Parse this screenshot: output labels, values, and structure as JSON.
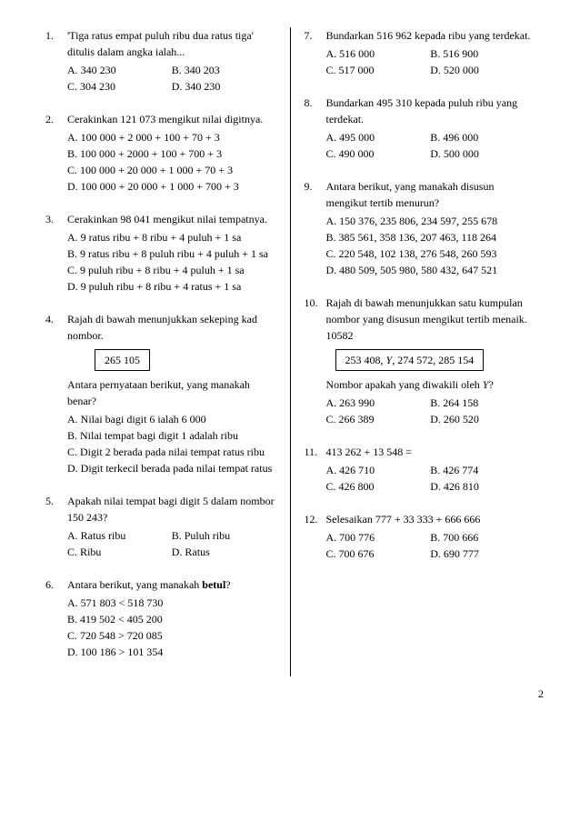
{
  "page_number": "2",
  "left": [
    {
      "num": "1.",
      "text": "'Tiga ratus empat puluh ribu dua ratus tiga' ditulis dalam angka ialah...",
      "layout": "2col",
      "options": [
        "A. 340 230",
        "B. 340 203",
        "C. 304 230",
        "D. 340 230"
      ]
    },
    {
      "num": "2.",
      "text": "Cerakinkan 121 073 mengikut nilai digitnya.",
      "layout": "1col",
      "options": [
        "A. 100 000 + 2 000 + 100 + 70 + 3",
        "B. 100 000 + 2000 + 100 + 700 + 3",
        "C. 100 000 + 20 000 + 1 000 + 70 + 3",
        "D. 100 000 + 20 000 + 1 000 + 700 + 3"
      ]
    },
    {
      "num": "3.",
      "text": "Cerakinkan 98 041 mengikut nilai tempatnya.",
      "layout": "1col",
      "options": [
        "A. 9 ratus ribu + 8 ribu + 4 puluh + 1 sa",
        "B. 9 ratus ribu + 8 puluh ribu + 4 puluh + 1 sa",
        "C. 9 puluh ribu + 8 ribu + 4 puluh + 1 sa",
        "D. 9 puluh ribu + 8 ribu + 4 ratus + 1 sa"
      ]
    },
    {
      "num": "4.",
      "text": "Rajah di bawah menunjukkan sekeping kad nombor.",
      "box": "265 105",
      "text2": "Antara pernyataan berikut, yang manakah benar?",
      "layout": "1col",
      "options": [
        "A. Nilai bagi digit 6 ialah 6 000",
        "B. Nilai tempat bagi digit 1 adalah ribu",
        "C. Digit 2 berada pada nilai tempat ratus ribu",
        "D. Digit terkecil berada pada nilai tempat ratus"
      ]
    },
    {
      "num": "5.",
      "text": "Apakah nilai tempat bagi digit 5 dalam nombor 150 243?",
      "layout": "2col",
      "options": [
        "A. Ratus ribu",
        "B. Puluh ribu",
        "C. Ribu",
        "D. Ratus"
      ]
    },
    {
      "num": "6.",
      "text_html": "Antara berikut, yang manakah <b>betul</b>?",
      "layout": "1col",
      "options": [
        "A. 571 803 < 518 730",
        "B. 419 502 < 405 200",
        "C. 720 548 > 720 085",
        "D. 100 186 > 101 354"
      ]
    }
  ],
  "right": [
    {
      "num": "7.",
      "text": "Bundarkan 516 962 kepada ribu yang terdekat.",
      "layout": "2col",
      "options": [
        "A. 516 000",
        "B. 516 900",
        "C. 517 000",
        "D. 520 000"
      ]
    },
    {
      "num": "8.",
      "text": "Bundarkan 495 310 kepada puluh ribu yang terdekat.",
      "layout": "2col",
      "options": [
        "A. 495 000",
        "B. 496 000",
        "C. 490 000",
        "D. 500 000"
      ]
    },
    {
      "num": "9.",
      "text": "Antara berikut, yang manakah disusun mengikut tertib menurun?",
      "layout": "1col",
      "options": [
        "A. 150 376, 235 806, 234 597, 255 678",
        "B. 385 561, 358 136, 207 463, 118 264",
        "C. 220 548, 102 138, 276 548, 260 593",
        "D. 480 509, 505 980, 580 432, 647 521"
      ]
    },
    {
      "num": "10.",
      "text": "Rajah di bawah menunjukkan satu kumpulan nombor yang disusun mengikut tertib menaik. 10582",
      "box_wide_html": "253 408, <i>Y</i>, 274 572, 285 154",
      "text2_html": "Nombor apakah yang diwakili oleh <i>Y</i>?",
      "layout": "2col",
      "options": [
        "A. 263 990",
        "B. 264 158",
        "C. 266 389",
        "D. 260 520"
      ]
    },
    {
      "num": "11.",
      "text": "413 262 + 13 548 =",
      "layout": "2col",
      "options": [
        "A. 426 710",
        "B. 426 774",
        "C. 426 800",
        "D. 426 810"
      ]
    },
    {
      "num": "12.",
      "text": "Selesaikan 777 + 33 333 + 666 666",
      "layout": "2col",
      "options": [
        "A. 700 776",
        "B. 700 666",
        "C. 700 676",
        "D. 690 777"
      ]
    }
  ]
}
